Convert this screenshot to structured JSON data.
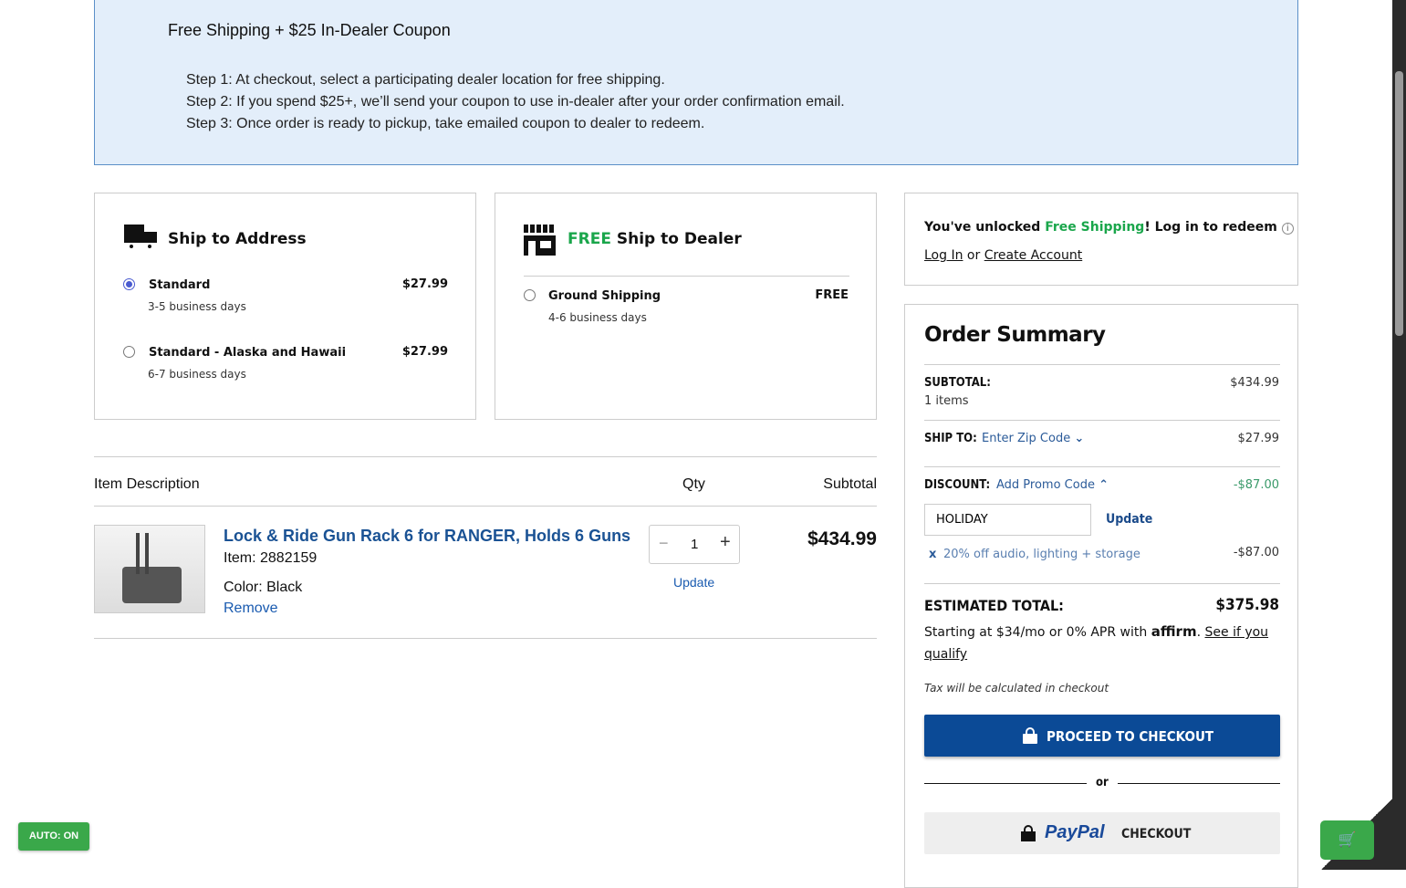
{
  "banner": {
    "title": "Free Shipping + $25 In-Dealer Coupon",
    "steps": [
      "Step 1: At checkout, select a participating dealer location for free shipping.",
      "Step 2: If you spend $25+, we’ll send your coupon to use in-dealer after your order confirmation email.",
      "Step 3: Once order is ready to pickup, take emailed coupon to dealer to redeem."
    ]
  },
  "ship_address": {
    "title": "Ship to Address",
    "options": [
      {
        "name": "Standard",
        "days": "3-5 business days",
        "price": "$27.99",
        "selected": true
      },
      {
        "name": "Standard - Alaska and Hawaii",
        "days": "6-7 business days",
        "price": "$27.99",
        "selected": false
      }
    ]
  },
  "ship_dealer": {
    "free": "FREE",
    "title": "Ship to Dealer",
    "options": [
      {
        "name": "Ground Shipping",
        "days": "4-6 business days",
        "price": "FREE",
        "selected": false
      }
    ]
  },
  "cart": {
    "headers": {
      "desc": "Item Description",
      "qty": "Qty",
      "subtotal": "Subtotal"
    },
    "item": {
      "name": "Lock & Ride Gun Rack 6 for RANGER, Holds 6 Guns",
      "item_no": "Item: 2882159",
      "color": "Color: Black",
      "remove": "Remove",
      "qty": "1",
      "update": "Update",
      "subtotal": "$434.99"
    }
  },
  "login": {
    "pre": "You've unlocked ",
    "free": "Free Shipping",
    "post": "! Log in to redeem",
    "login": "Log In",
    "or": " or ",
    "create": "Create Account"
  },
  "summary": {
    "title": "Order Summary",
    "subtotal_label": "SUBTOTAL:",
    "subtotal": "$434.99",
    "items": "1 items",
    "shipto_label": "SHIP TO:",
    "zip": "Enter Zip Code",
    "ship": "$27.99",
    "discount_label": "DISCOUNT:",
    "promo": "Add Promo Code",
    "discount": "-$87.00",
    "promo_value": "HOLIDAY",
    "promo_update": "Update",
    "applied": "20% off audio, lighting + storage",
    "applied_amount": "-$87.00",
    "total_label": "ESTIMATED TOTAL:",
    "total": "$375.98",
    "affirm_pre": "Starting at $34/mo or 0% APR with ",
    "affirm": "affirm",
    "affirm_link1": "See if you",
    "affirm_link2": "qualify",
    "tax": "Tax will be calculated in checkout",
    "checkout": "PROCEED TO CHECKOUT",
    "or": "or",
    "paypal": "PayPal",
    "paypal_checkout": "CHECKOUT"
  },
  "auto": "AUTO: ON",
  "colors": {
    "accent": "#0b4a96",
    "green": "#1aa64b",
    "banner": "#e3eefa"
  }
}
